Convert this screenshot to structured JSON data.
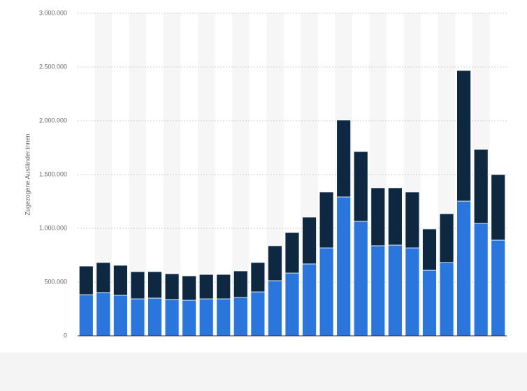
{
  "chart_data": {
    "type": "stacked-bar",
    "y_label": "Zugezogene Ausländer:innen",
    "categories": [
      null,
      null,
      null,
      null,
      null,
      null,
      null,
      null,
      null,
      null,
      null,
      null,
      null,
      null,
      null,
      null,
      null,
      null,
      null,
      null,
      null,
      null,
      null,
      null,
      null
    ],
    "series": [
      {
        "color": "#2a76dd",
        "values": [
          383000,
          403000,
          377000,
          344000,
          351000,
          338000,
          331000,
          344000,
          344000,
          357000,
          409000,
          513000,
          584000,
          669000,
          818000,
          1292000,
          1065000,
          838000,
          844000,
          818000,
          610000,
          682000,
          1253000,
          1046000,
          890000
        ]
      },
      {
        "color": "#0e2841",
        "values": [
          266000,
          279000,
          279000,
          253000,
          246000,
          240000,
          227000,
          227000,
          227000,
          247000,
          273000,
          325000,
          377000,
          435000,
          520000,
          715000,
          649000,
          539000,
          533000,
          520000,
          384000,
          454000,
          1215000,
          688000,
          610000
        ]
      }
    ],
    "ylim": [
      0,
      3000000
    ],
    "yticks": [
      0,
      {
        "value": 500000,
        "label": "500.000"
      },
      {
        "value": 1000000,
        "label": "1.000.000"
      },
      {
        "value": 1500000,
        "label": "1.500.000"
      },
      {
        "value": 2000000,
        "label": "2.000.000"
      },
      {
        "value": 2500000,
        "label": "2.500.000"
      },
      {
        "value": 3000000,
        "label": "3.000.000"
      }
    ],
    "grid": true
  }
}
